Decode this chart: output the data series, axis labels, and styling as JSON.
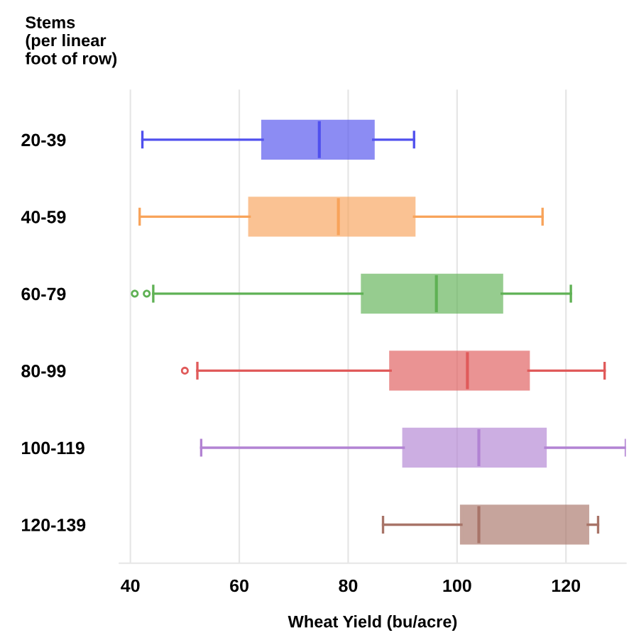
{
  "chart_data": {
    "type": "box",
    "orientation": "horizontal",
    "ylabel": "Stems\n(per linear\nfoot of row)",
    "xlabel": "Wheat Yield (bu/acre)",
    "categories": [
      "20-39",
      "40-59",
      "60-79",
      "80-99",
      "100-119",
      "120-139"
    ],
    "boxes": [
      {
        "low": 42.2,
        "q1": 64.3,
        "median": 74.7,
        "q3": 84.6,
        "high": 92.1
      },
      {
        "low": 41.7,
        "q1": 61.9,
        "median": 78.2,
        "q3": 92.1,
        "high": 115.7
      },
      {
        "low": 44.2,
        "q1": 82.6,
        "median": 96.2,
        "q3": 108.2,
        "high": 120.9,
        "outliers": [
          40.8,
          43.0
        ]
      },
      {
        "low": 52.3,
        "q1": 87.8,
        "median": 101.9,
        "q3": 113.1,
        "high": 127.1,
        "outliers": [
          50.0
        ]
      },
      {
        "low": 53.0,
        "q1": 90.2,
        "median": 104.0,
        "q3": 116.2,
        "high": 131
      },
      {
        "low": 86.4,
        "q1": 100.8,
        "median": 104.0,
        "q3": 124.0,
        "high": 125.9
      }
    ],
    "colors": [
      "#5050ee",
      "#f8a35a",
      "#5fb154",
      "#e05a5a",
      "#b283d3",
      "#a87468"
    ],
    "xlim": [
      38,
      131
    ],
    "xticks": [
      40,
      60,
      80,
      100,
      120
    ],
    "grid": "x"
  }
}
